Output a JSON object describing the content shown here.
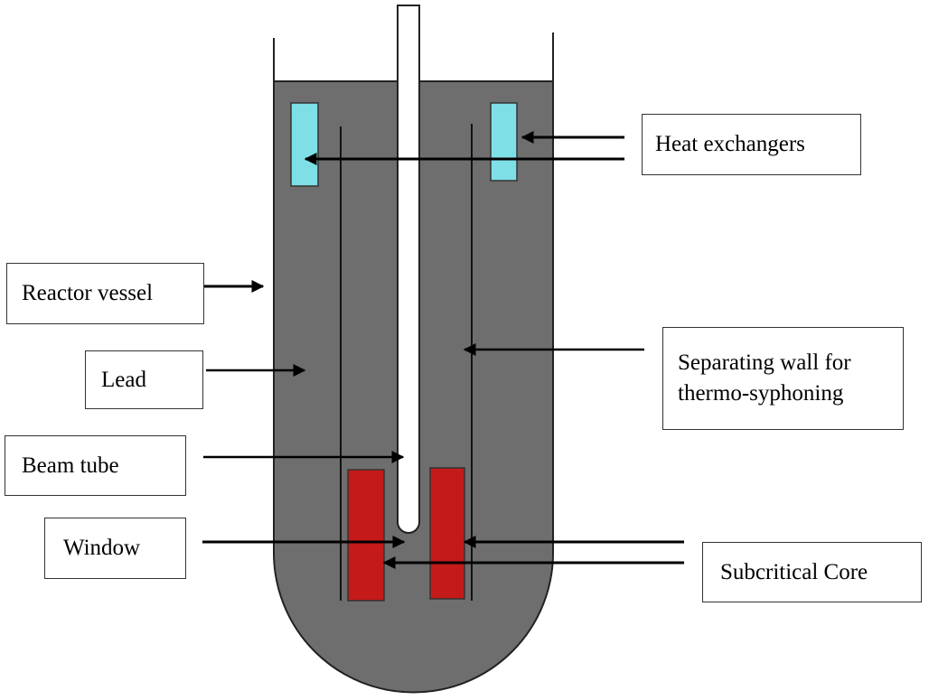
{
  "labels": {
    "heat_exchangers": "Heat exchangers",
    "reactor_vessel": "Reactor vessel",
    "lead": "Lead",
    "separating_wall_line1": "Separating wall for",
    "separating_wall_line2": "thermo-syphoning",
    "beam_tube": "Beam tube",
    "window": "Window",
    "subcritical_core": "Subcritical Core"
  },
  "colors": {
    "lead": "#6e6e6e",
    "heat_exchanger": "#7fdfe6",
    "core": "#c41a1a",
    "outline": "#222222"
  }
}
